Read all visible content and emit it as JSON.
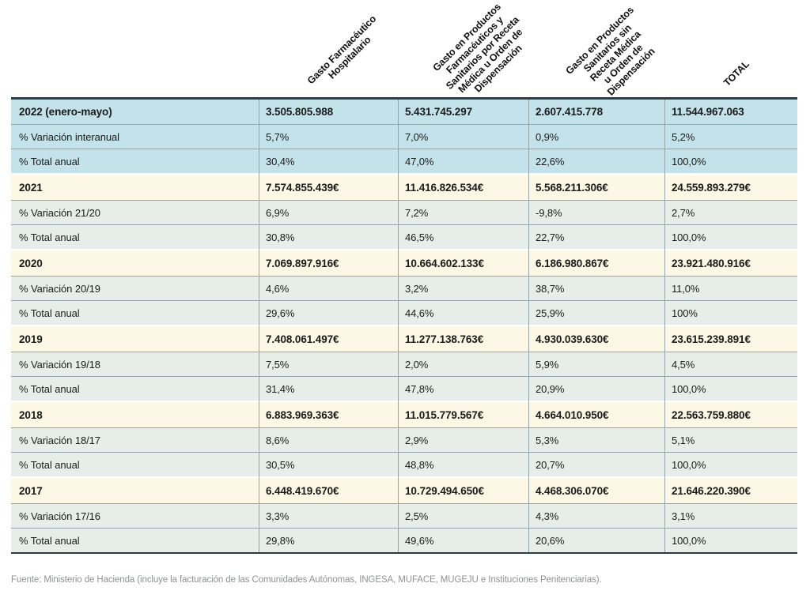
{
  "chart_data": {
    "type": "table",
    "columns": [
      "Gasto Farmacéutico Hospitalario",
      "Gasto en Productos Farmacéuticos y Sanitarios por Receta Médica u Orden de Dispensación",
      "Gasto en Productos Sanitarios sin Receta Médica u Orden de Dispensación",
      "TOTAL"
    ],
    "sections": [
      {
        "theme": "blue",
        "rows": [
          {
            "label": "2022 (enero-mayo)",
            "emphasis": true,
            "values": [
              "3.505.805.988",
              "5.431.745.297",
              "2.607.415.778",
              "11.544.967.063"
            ]
          },
          {
            "label": "% Variación interanual",
            "emphasis": false,
            "values": [
              "5,7%",
              "7,0%",
              "0,9%",
              "5,2%"
            ]
          },
          {
            "label": "% Total anual",
            "emphasis": false,
            "values": [
              "30,4%",
              "47,0%",
              "22,6%",
              "100,0%"
            ]
          }
        ]
      },
      {
        "theme": "yearly",
        "rows": [
          {
            "label": "2021",
            "emphasis": true,
            "values": [
              "7.574.855.439€",
              "11.416.826.534€",
              "5.568.211.306€",
              "24.559.893.279€"
            ]
          },
          {
            "label": "% Variación 21/20",
            "emphasis": false,
            "values": [
              "6,9%",
              "7,2%",
              "-9,8%",
              "2,7%"
            ]
          },
          {
            "label": "% Total anual",
            "emphasis": false,
            "values": [
              "30,8%",
              "46,5%",
              "22,7%",
              "100,0%"
            ]
          }
        ]
      },
      {
        "theme": "yearly",
        "rows": [
          {
            "label": "2020",
            "emphasis": true,
            "values": [
              "7.069.897.916€",
              "10.664.602.133€",
              "6.186.980.867€",
              "23.921.480.916€"
            ]
          },
          {
            "label": "% Variación 20/19",
            "emphasis": false,
            "values": [
              "4,6%",
              "3,2%",
              "38,7%",
              "11,0%"
            ]
          },
          {
            "label": "% Total anual",
            "emphasis": false,
            "values": [
              "29,6%",
              "44,6%",
              "25,9%",
              "100%"
            ]
          }
        ]
      },
      {
        "theme": "yearly",
        "rows": [
          {
            "label": "2019",
            "emphasis": true,
            "values": [
              "7.408.061.497€",
              "11.277.138.763€",
              "4.930.039.630€",
              "23.615.239.891€"
            ]
          },
          {
            "label": "% Variación 19/18",
            "emphasis": false,
            "values": [
              "7,5%",
              "2,0%",
              "5,9%",
              "4,5%"
            ]
          },
          {
            "label": "% Total anual",
            "emphasis": false,
            "values": [
              "31,4%",
              "47,8%",
              "20,9%",
              "100,0%"
            ]
          }
        ]
      },
      {
        "theme": "yearly",
        "rows": [
          {
            "label": "2018",
            "emphasis": true,
            "values": [
              "6.883.969.363€",
              "11.015.779.567€",
              "4.664.010.950€",
              "22.563.759.880€"
            ]
          },
          {
            "label": "% Variación 18/17",
            "emphasis": false,
            "values": [
              "8,6%",
              "2,9%",
              "5,3%",
              "5,1%"
            ]
          },
          {
            "label": "% Total anual",
            "emphasis": false,
            "values": [
              "30,5%",
              "48,8%",
              "20,7%",
              "100,0%"
            ]
          }
        ]
      },
      {
        "theme": "yearly",
        "rows": [
          {
            "label": "2017",
            "emphasis": true,
            "values": [
              "6.448.419.670€",
              "10.729.494.650€",
              "4.468.306.070€",
              "21.646.220.390€"
            ]
          },
          {
            "label": "% Variación 17/16",
            "emphasis": false,
            "values": [
              "3,3%",
              "2,5%",
              "4,3%",
              "3,1%"
            ]
          },
          {
            "label": "% Total anual",
            "emphasis": false,
            "values": [
              "29,8%",
              "49,6%",
              "20,6%",
              "100,0%"
            ]
          }
        ]
      }
    ]
  },
  "header": {
    "columns": [
      {
        "label": "Gasto Farmacéutico\nHospitalario"
      },
      {
        "label": "Gasto en Productos\nFarmacéuticos y\nSanitarios por Receta\nMédica u Orden de\nDispensación"
      },
      {
        "label": "Gasto en Productos\nSanitarios sin\nReceta Médica\nu Orden de\nDispensación"
      },
      {
        "label": "TOTAL"
      }
    ]
  },
  "footer": {
    "source": "Fuente: Ministerio de Hacienda (incluye la facturación de las Comunidades Autónomas, INGESA, MUFACE, MUGEJU e Instituciones Penitenciarias)."
  },
  "colors": {
    "highlight_blue": "#c4e2e9",
    "year_cream": "#fcf8e5",
    "subrow_green": "#e7eeea",
    "border_dark": "#2d3c43",
    "grid_line": "#96a4a7",
    "source_text": "#8d9293"
  }
}
